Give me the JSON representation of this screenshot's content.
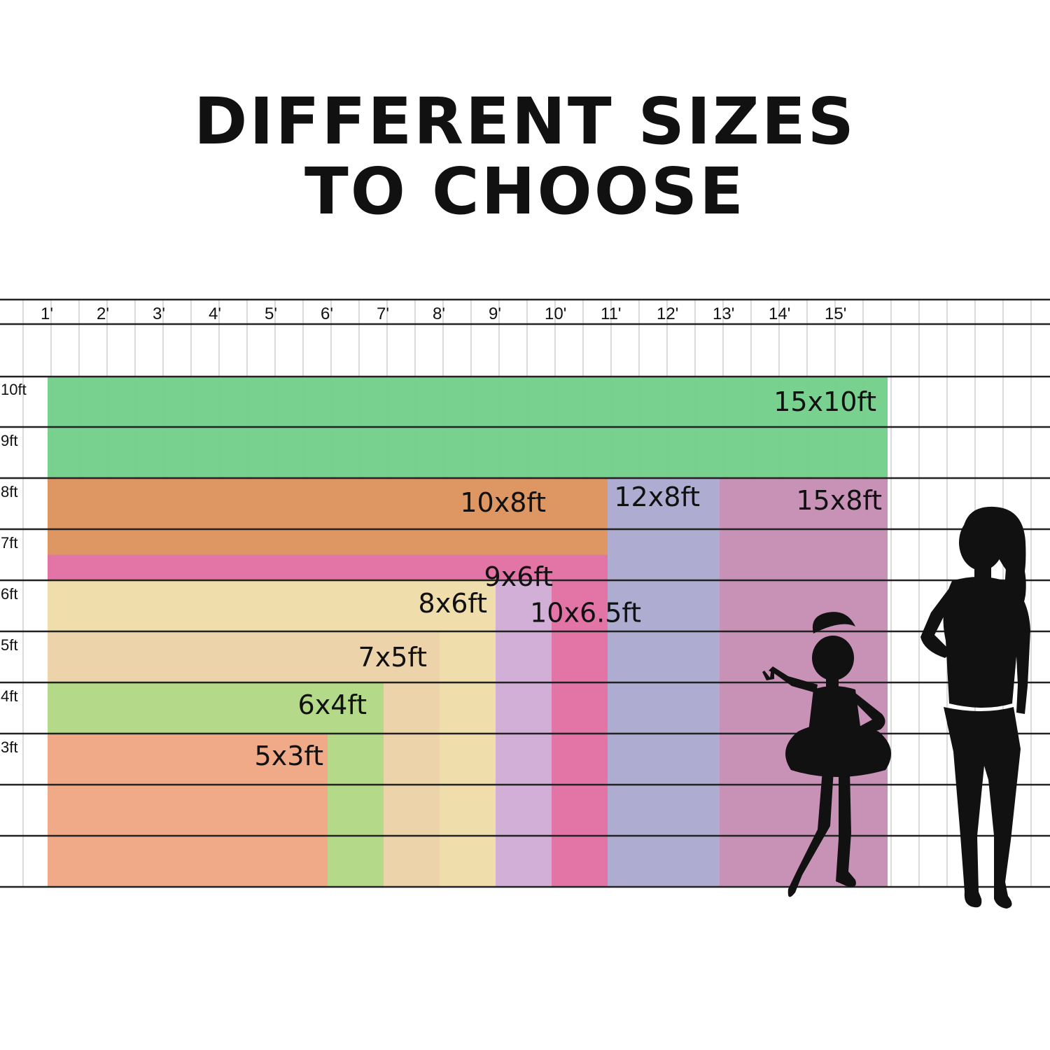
{
  "title": {
    "line1": "DIFFERENT SIZES",
    "line2": "TO CHOOSE"
  },
  "ruler": {
    "column_labels": [
      "1'",
      "2'",
      "3'",
      "4'",
      "5'",
      "6'",
      "7'",
      "8'",
      "9'",
      "10'",
      "11'",
      "12'",
      "13'",
      "14'",
      "15'"
    ],
    "row_labels": [
      "10ft",
      "9ft",
      "8ft",
      "7ft",
      "6ft",
      "5ft",
      "4ft",
      "3ft"
    ]
  },
  "sizes": [
    {
      "label": "15x10ft",
      "width_ft": 15,
      "height_ft": 10,
      "color": "#74cf8b"
    },
    {
      "label": "15x8ft",
      "width_ft": 15,
      "height_ft": 8,
      "color": "#cb90b8"
    },
    {
      "label": "12x8ft",
      "width_ft": 12,
      "height_ft": 8,
      "color": "#adaed2"
    },
    {
      "label": "10x8ft",
      "width_ft": 10,
      "height_ft": 8,
      "color": "#e0955e"
    },
    {
      "label": "10x6.5ft",
      "width_ft": 10,
      "height_ft": 6.5,
      "color": "#e373a9"
    },
    {
      "label": "9x6ft",
      "width_ft": 9,
      "height_ft": 6,
      "color": "#d1b2d9"
    },
    {
      "label": "8x6ft",
      "width_ft": 8,
      "height_ft": 6,
      "color": "#efe0aa"
    },
    {
      "label": "7x5ft",
      "width_ft": 7,
      "height_ft": 5,
      "color": "#ecd2aa"
    },
    {
      "label": "6x4ft",
      "width_ft": 6,
      "height_ft": 4,
      "color": "#b1d886"
    },
    {
      "label": "5x3ft",
      "width_ft": 5,
      "height_ft": 3,
      "color": "#f2a888"
    }
  ],
  "silhouettes": [
    "girl-silhouette",
    "woman-silhouette"
  ],
  "colors": {
    "grid_major": "#222222",
    "grid_minor": "#b5b5b5",
    "silhouette": "#111111"
  }
}
